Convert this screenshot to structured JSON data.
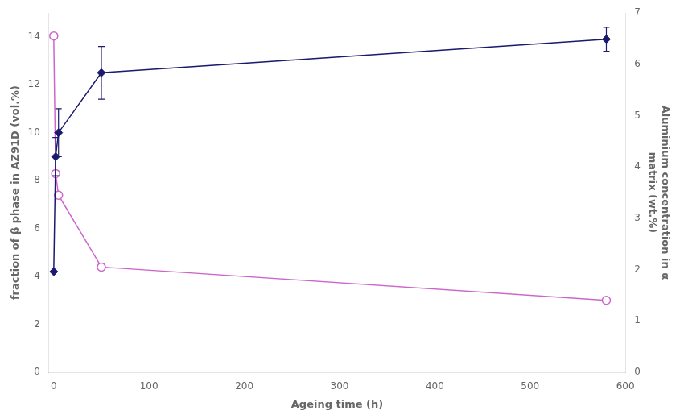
{
  "chart_data": {
    "type": "line",
    "xlabel": "Ageing time (h)",
    "ylabel": "fraction of β phase in AZ91D (vol.%)",
    "y2label": "Aluminium concentration in α\nmatrix (wt.%)",
    "x": [
      0,
      2,
      5,
      50,
      580
    ],
    "xlim": [
      -5,
      600
    ],
    "xticks": [
      0,
      100,
      200,
      300,
      400,
      500,
      600
    ],
    "ylim": [
      0,
      15
    ],
    "yticks": [
      0,
      2,
      4,
      6,
      8,
      10,
      12,
      14
    ],
    "y2lim": [
      0,
      7
    ],
    "y2ticks": [
      0,
      1,
      2,
      3,
      4,
      5,
      6,
      7
    ],
    "grid": false,
    "series": [
      {
        "color": "#1a1a6e",
        "marker": "diamond",
        "values": [
          4.2,
          9.0,
          10.0,
          12.5,
          13.9
        ],
        "errors": [
          0,
          0.8,
          1.0,
          1.1,
          0.5
        ]
      },
      {
        "color": "#cc66cc",
        "marker": "circle",
        "axis": "y2",
        "values": [
          6.55,
          3.87,
          3.45,
          2.05,
          1.4
        ]
      }
    ]
  }
}
